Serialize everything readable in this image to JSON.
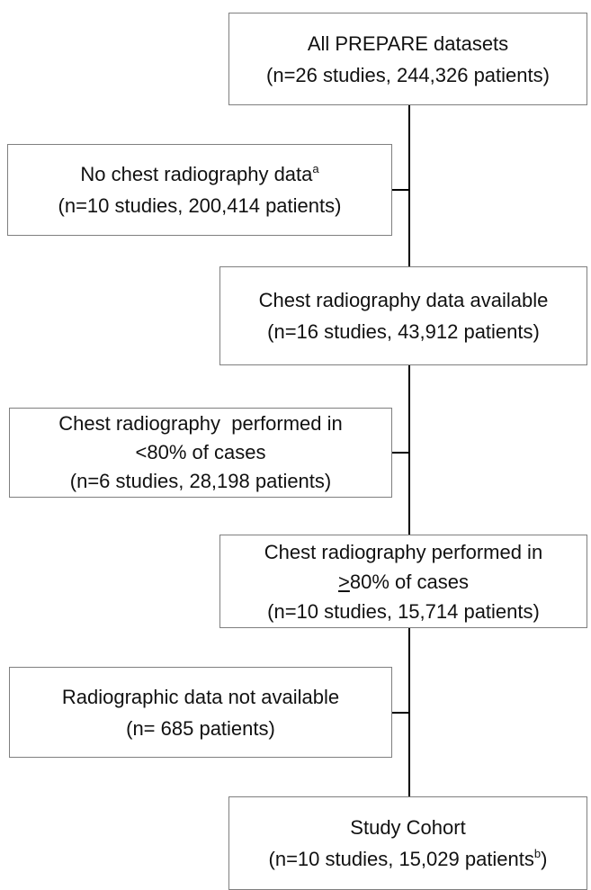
{
  "nodes": [
    {
      "lines": [
        "All PREPARE datasets",
        "(n=26 studies, 244,326 patients)"
      ]
    },
    {
      "lines": [
        "No chest radiography data",
        "(n=10 studies, 200,414 patients)"
      ],
      "note": "a"
    },
    {
      "lines": [
        "Chest radiography data available",
        "(n=16 studies, 43,912 patients)"
      ]
    },
    {
      "lines": [
        "Chest radiography  performed in",
        "<80% of cases",
        "(n=6 studies, 28,198 patients)"
      ]
    },
    {
      "lines": [
        "Chest radiography performed in",
        "80% of cases",
        "(n=10 studies, 15,714 patients)"
      ],
      "symbol": ">"
    },
    {
      "lines": [
        "Radiographic data not available",
        "(n= 685 patients)"
      ]
    },
    {
      "lines": [
        "Study Cohort",
        "(n=10 studies, 15,029 patients"
      ],
      "note": "b",
      "closing": ")"
    }
  ]
}
